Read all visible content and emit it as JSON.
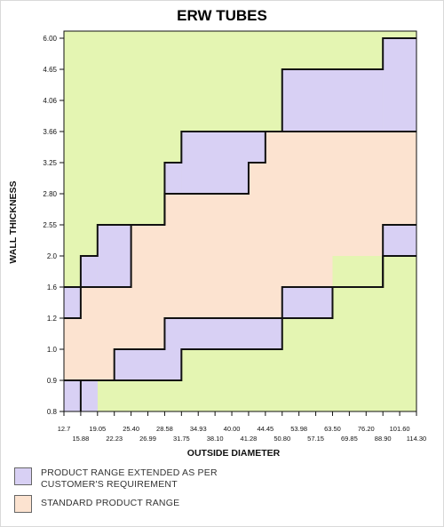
{
  "chart_data": {
    "type": "area",
    "title": "ERW TUBES",
    "xlabel": "OUTSIDE DIAMETER",
    "ylabel": "WALL THICKNESS",
    "x_ticks": [
      "12.7",
      "15.88",
      "19.05",
      "22.23",
      "25.40",
      "26.99",
      "28.58",
      "31.75",
      "34.93",
      "38.10",
      "40.00",
      "41.28",
      "44.45",
      "50.80",
      "53.98",
      "57.15",
      "63.50",
      "69.85",
      "76.20",
      "88.90",
      "101.60",
      "114.30"
    ],
    "y_ticks": [
      "0.8",
      "0.9",
      "1.0",
      "1.2",
      "1.6",
      "2.0",
      "2.55",
      "2.80",
      "3.25",
      "3.66",
      "4.06",
      "4.65",
      "6.00"
    ],
    "regions": [
      {
        "name": "PRODUCT RANGE EXTENDED AS PER CUSTOMER'S REQUIREMENT",
        "color": "#d8d0f4",
        "upper_extension": [
          {
            "od": "12.7",
            "wt_min": "1.2",
            "wt_max": "1.6"
          },
          {
            "od": "15.88",
            "wt_min": "1.6",
            "wt_max": "2.0"
          },
          {
            "od": "19.05",
            "wt_min": "1.6",
            "wt_max": "2.55"
          },
          {
            "od": "22.23",
            "wt_min": "1.6",
            "wt_max": "2.55"
          },
          {
            "od": "26.99",
            "wt_min": "2.80",
            "wt_max": "3.25"
          },
          {
            "od": "28.58",
            "wt_min": "2.80",
            "wt_max": "3.66"
          },
          {
            "od": "38.10",
            "wt_min": "2.80",
            "wt_max": "3.66"
          },
          {
            "od": "41.28",
            "wt_min": "3.25",
            "wt_max": "3.66"
          },
          {
            "od": "44.45",
            "wt_min": "3.66",
            "wt_max": "4.65"
          },
          {
            "od": "76.20",
            "wt_min": "3.66",
            "wt_max": "6.00"
          },
          {
            "od": "101.60",
            "wt_min": "3.66",
            "wt_max": "6.00"
          }
        ],
        "lower_extension": [
          {
            "od": "12.7",
            "wt_min": "0.8",
            "wt_max": "0.9"
          },
          {
            "od": "22.23",
            "wt_min": "0.9",
            "wt_max": "1.0"
          },
          {
            "od": "26.99",
            "wt_min": "0.9",
            "wt_max": "1.0"
          },
          {
            "od": "28.58",
            "wt_min": "1.0",
            "wt_max": "1.2"
          },
          {
            "od": "44.45",
            "wt_min": "1.2",
            "wt_max": "1.6"
          },
          {
            "od": "63.50",
            "wt_min": "1.6",
            "wt_max": "1.6"
          },
          {
            "od": "76.20",
            "wt_min": "2.0",
            "wt_max": "2.55"
          },
          {
            "od": "101.60",
            "wt_min": "2.0",
            "wt_max": "2.55"
          }
        ]
      },
      {
        "name": "STANDARD PRODUCT RANGE",
        "color": "#fce3d0",
        "bands": [
          {
            "od": "12.7",
            "wt_min": "0.9",
            "wt_max": "1.2"
          },
          {
            "od": "15.88",
            "wt_min": "0.9",
            "wt_max": "1.6"
          },
          {
            "od": "22.23",
            "wt_min": "1.0",
            "wt_max": "1.6"
          },
          {
            "od": "25.40",
            "wt_min": "1.0",
            "wt_max": "2.55"
          },
          {
            "od": "26.99",
            "wt_min": "1.0",
            "wt_max": "2.55"
          },
          {
            "od": "28.58",
            "wt_min": "1.2",
            "wt_max": "2.80"
          },
          {
            "od": "41.28",
            "wt_min": "1.2",
            "wt_max": "3.25"
          },
          {
            "od": "44.45",
            "wt_min": "1.2",
            "wt_max": "3.66"
          },
          {
            "od": "50.80",
            "wt_min": "1.6",
            "wt_max": "3.66"
          },
          {
            "od": "63.50",
            "wt_min": "1.6",
            "wt_max": "3.66"
          },
          {
            "od": "76.20",
            "wt_min": "2.55",
            "wt_max": "3.66"
          },
          {
            "od": "101.60",
            "wt_min": "2.55",
            "wt_max": "3.66"
          }
        ]
      }
    ],
    "background_color": "#e4f5b2",
    "legend_position": "bottom-left"
  },
  "legend": {
    "extended_label": "PRODUCT RANGE EXTENDED AS PER\nCUSTOMER'S REQUIREMENT",
    "standard_label": "STANDARD PRODUCT RANGE",
    "extended_color": "#d8d0f4",
    "standard_color": "#fce3d0"
  }
}
